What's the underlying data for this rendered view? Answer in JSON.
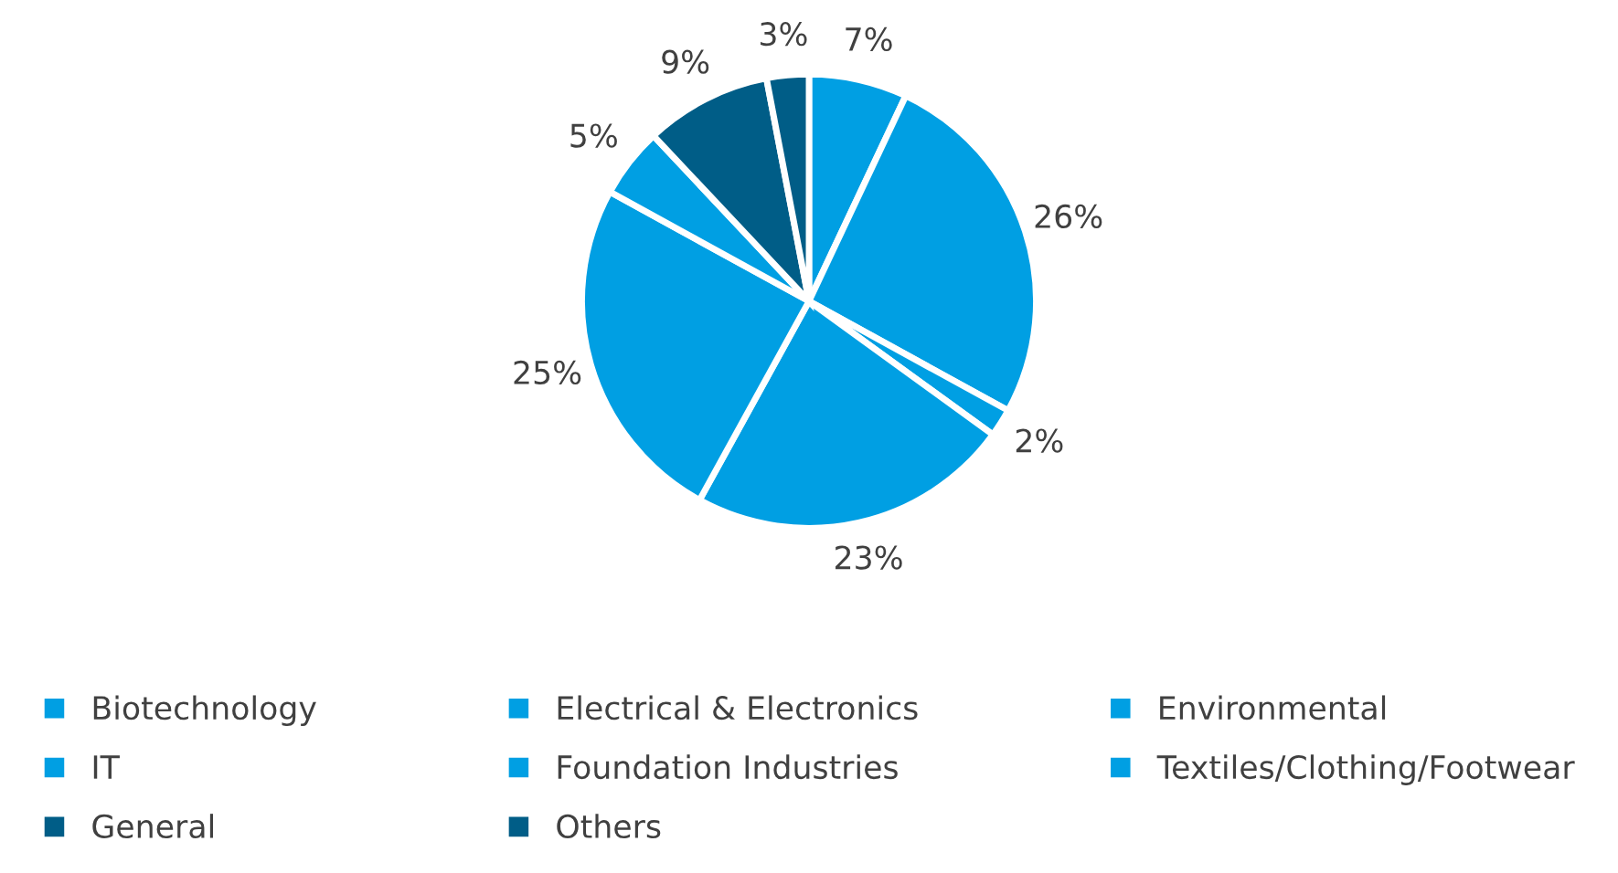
{
  "chart_data": {
    "type": "pie",
    "categories": [
      "Biotechnology",
      "Electrical & Electronics",
      "Environmental",
      "IT",
      "Foundation Industries",
      "Textiles/Clothing/Footwear",
      "General",
      "Others"
    ],
    "values": [
      7,
      26,
      2,
      23,
      25,
      5,
      9,
      3
    ],
    "value_labels": [
      "7%",
      "26%",
      "2%",
      "23%",
      "25%",
      "5%",
      "9%",
      "3%"
    ],
    "colors": [
      "#009fe3",
      "#009fe3",
      "#009fe3",
      "#009fe3",
      "#009fe3",
      "#009fe3",
      "#005d87",
      "#005d87"
    ],
    "legend": "bottom"
  }
}
